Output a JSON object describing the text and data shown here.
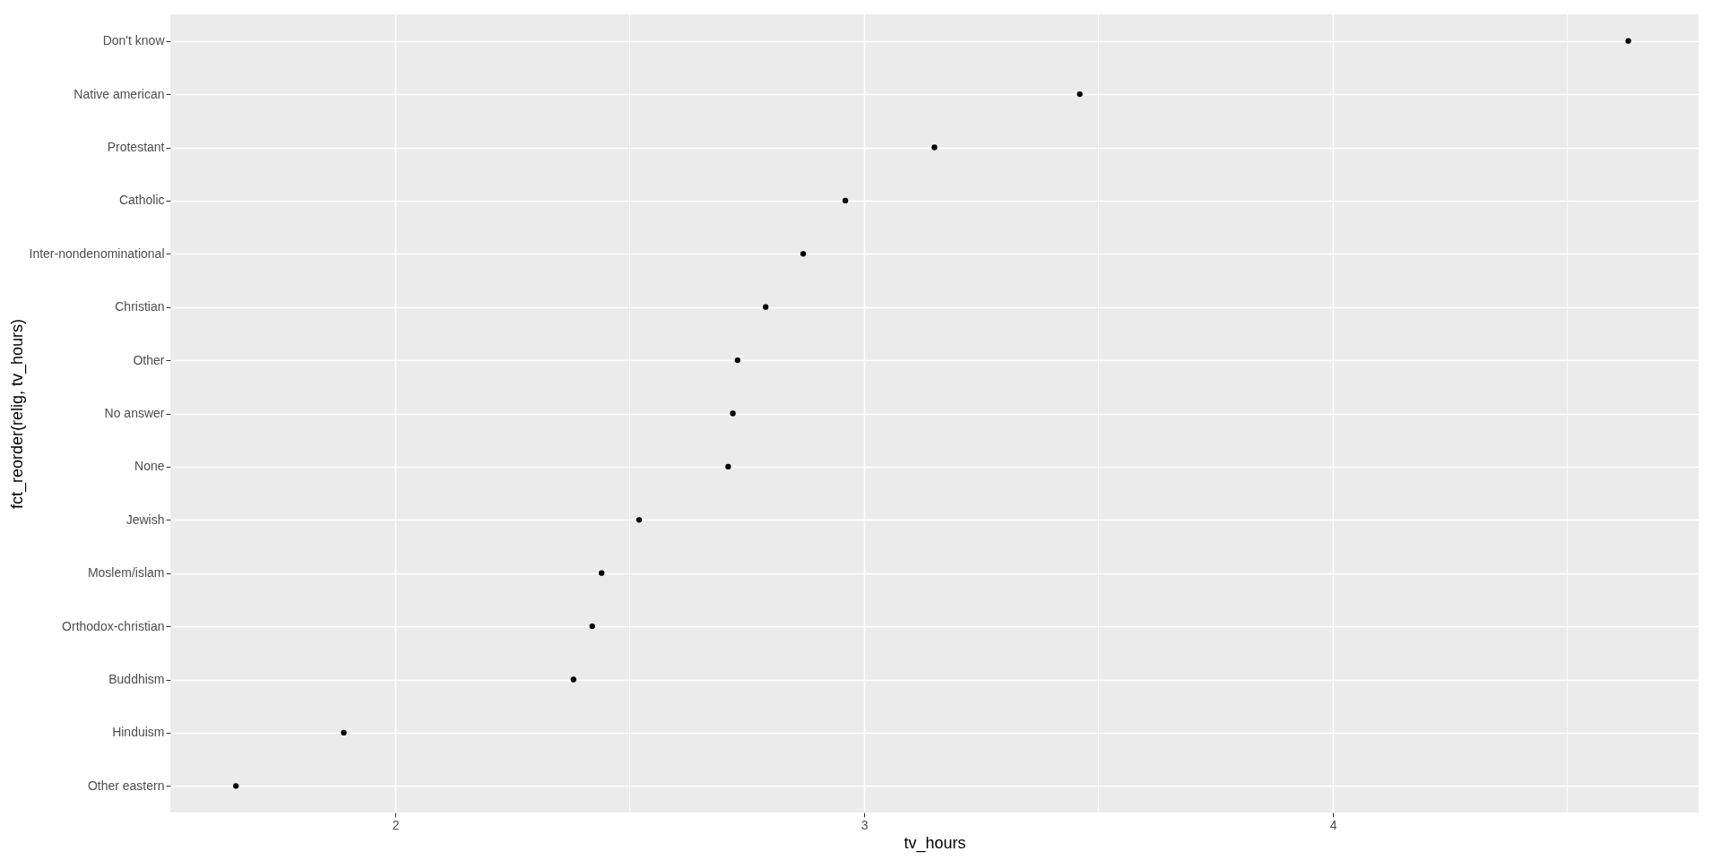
{
  "chart_data": {
    "type": "scatter",
    "orientation": "horizontal",
    "xlabel": "tv_hours",
    "ylabel": "fct_reorder(relig, tv_hours)",
    "categories": [
      "Don't know",
      "Native american",
      "Protestant",
      "Catholic",
      "Inter-nondenominational",
      "Christian",
      "Other",
      "No answer",
      "None",
      "Jewish",
      "Moslem/islam",
      "Orthodox-christian",
      "Buddhism",
      "Hinduism",
      "Other eastern"
    ],
    "series": [
      {
        "color": "#000000",
        "values": [
          4.63,
          3.46,
          3.15,
          2.96,
          2.87,
          2.79,
          2.73,
          2.72,
          2.71,
          2.52,
          2.44,
          2.42,
          2.38,
          1.89,
          1.66
        ]
      }
    ],
    "xlim": [
      1.52,
      4.78
    ],
    "xticks": [
      2,
      3,
      4
    ],
    "grid": true
  }
}
